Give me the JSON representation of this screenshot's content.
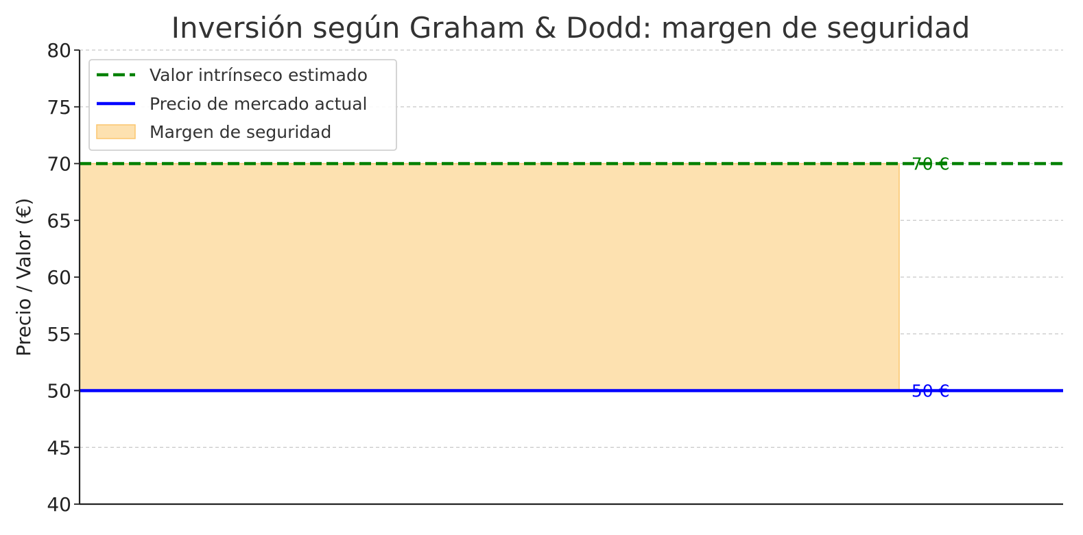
{
  "chart_data": {
    "type": "line",
    "title": "Inversión según Graham & Dodd: margen de seguridad",
    "xlabel": "",
    "ylabel": "Precio / Valor (€)",
    "ylim": [
      40,
      80
    ],
    "yticks": [
      40,
      45,
      50,
      55,
      60,
      65,
      70,
      75,
      80
    ],
    "xlim": [
      0,
      1.2
    ],
    "grid": "horizontal dashed",
    "legend_position": "top-left",
    "series": [
      {
        "name": "Valor intrínseco estimado",
        "value": 70,
        "style": "dashed",
        "color": "#008000"
      },
      {
        "name": "Precio de mercado actual",
        "value": 50,
        "style": "solid",
        "color": "#0000ff"
      }
    ],
    "band": {
      "name": "Margen de seguridad",
      "from": 50,
      "to": 70,
      "x_start": 0,
      "x_end": 1.0,
      "color": "#fde1b0",
      "edge": "#fbc66e"
    },
    "annotations": [
      {
        "text": "70 €",
        "y": 70,
        "x": 1.02,
        "color": "#008000"
      },
      {
        "text": "50 €",
        "y": 50,
        "x": 1.02,
        "color": "#0000ff"
      }
    ]
  }
}
